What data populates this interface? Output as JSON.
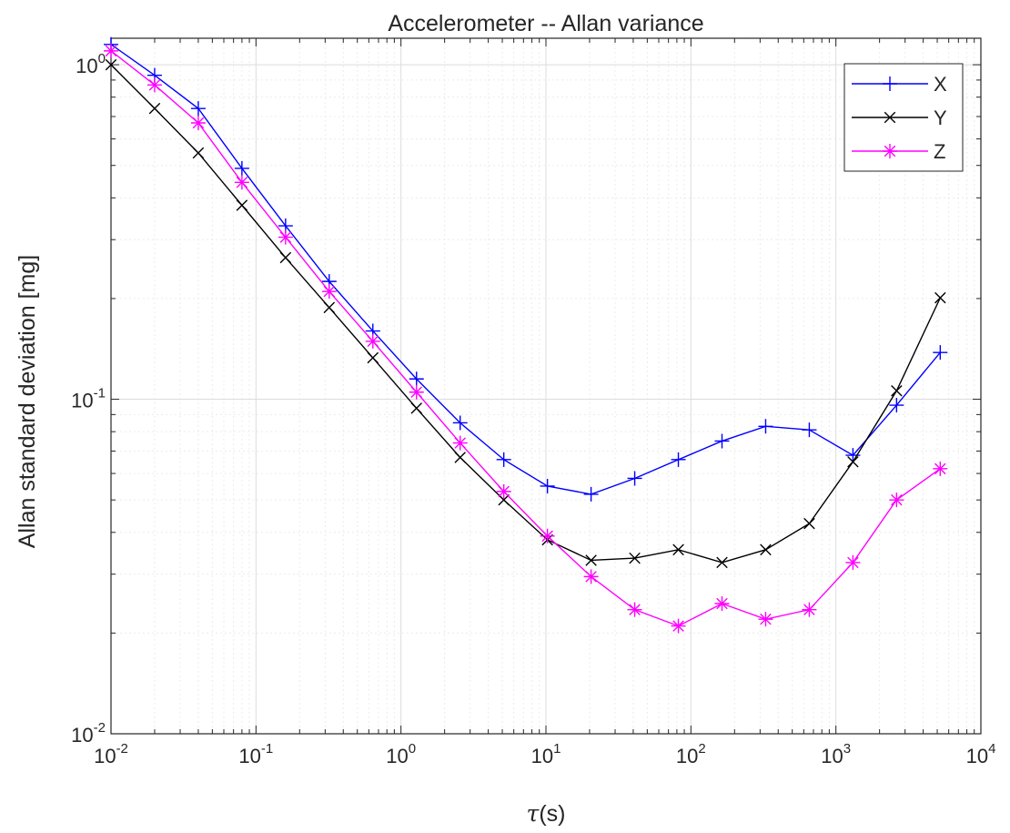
{
  "chart_data": {
    "type": "line",
    "title": "Accelerometer -- Allan variance",
    "xlabel_symbol": "τ",
    "xlabel_unit": "(s)",
    "ylabel": "Allan standard deviation [mg]",
    "xscale": "log",
    "yscale": "log",
    "xlim": [
      0.01,
      10000
    ],
    "ylim": [
      0.01,
      1.2
    ],
    "grid": true,
    "minor_grid": true,
    "legend_position": "top-right",
    "x_ticks": [
      {
        "base": "10",
        "exp": "-2"
      },
      {
        "base": "10",
        "exp": "-1"
      },
      {
        "base": "10",
        "exp": "0"
      },
      {
        "base": "10",
        "exp": "1"
      },
      {
        "base": "10",
        "exp": "2"
      },
      {
        "base": "10",
        "exp": "3"
      },
      {
        "base": "10",
        "exp": "4"
      }
    ],
    "y_ticks": [
      {
        "base": "10",
        "exp": "-2"
      },
      {
        "base": "10",
        "exp": "-1"
      },
      {
        "base": "10",
        "exp": "0"
      }
    ],
    "x": [
      0.01,
      0.02,
      0.04,
      0.08,
      0.16,
      0.32,
      0.64,
      1.28,
      2.56,
      5.12,
      10.24,
      20.48,
      40.96,
      81.92,
      163.84,
      327.68,
      655.36,
      1310.72,
      2621.44,
      5242.88
    ],
    "series": [
      {
        "name": "X",
        "color": "#0000ff",
        "marker": "plus",
        "values": [
          1.15,
          0.93,
          0.74,
          0.49,
          0.33,
          0.225,
          0.16,
          0.115,
          0.085,
          0.066,
          0.055,
          0.052,
          0.058,
          0.066,
          0.075,
          0.083,
          0.081,
          0.068,
          0.096,
          0.138
        ]
      },
      {
        "name": "Y",
        "color": "#000000",
        "marker": "x",
        "values": [
          1.0,
          0.74,
          0.545,
          0.38,
          0.265,
          0.188,
          0.133,
          0.094,
          0.067,
          0.05,
          0.038,
          0.033,
          0.0335,
          0.0355,
          0.0325,
          0.0355,
          0.0425,
          0.065,
          0.106,
          0.201
        ]
      },
      {
        "name": "Z",
        "color": "#ff00ff",
        "marker": "star",
        "values": [
          1.1,
          0.87,
          0.67,
          0.445,
          0.305,
          0.21,
          0.149,
          0.105,
          0.074,
          0.053,
          0.039,
          0.0295,
          0.0235,
          0.021,
          0.0245,
          0.022,
          0.0235,
          0.0325,
          0.05,
          0.062
        ]
      }
    ]
  }
}
